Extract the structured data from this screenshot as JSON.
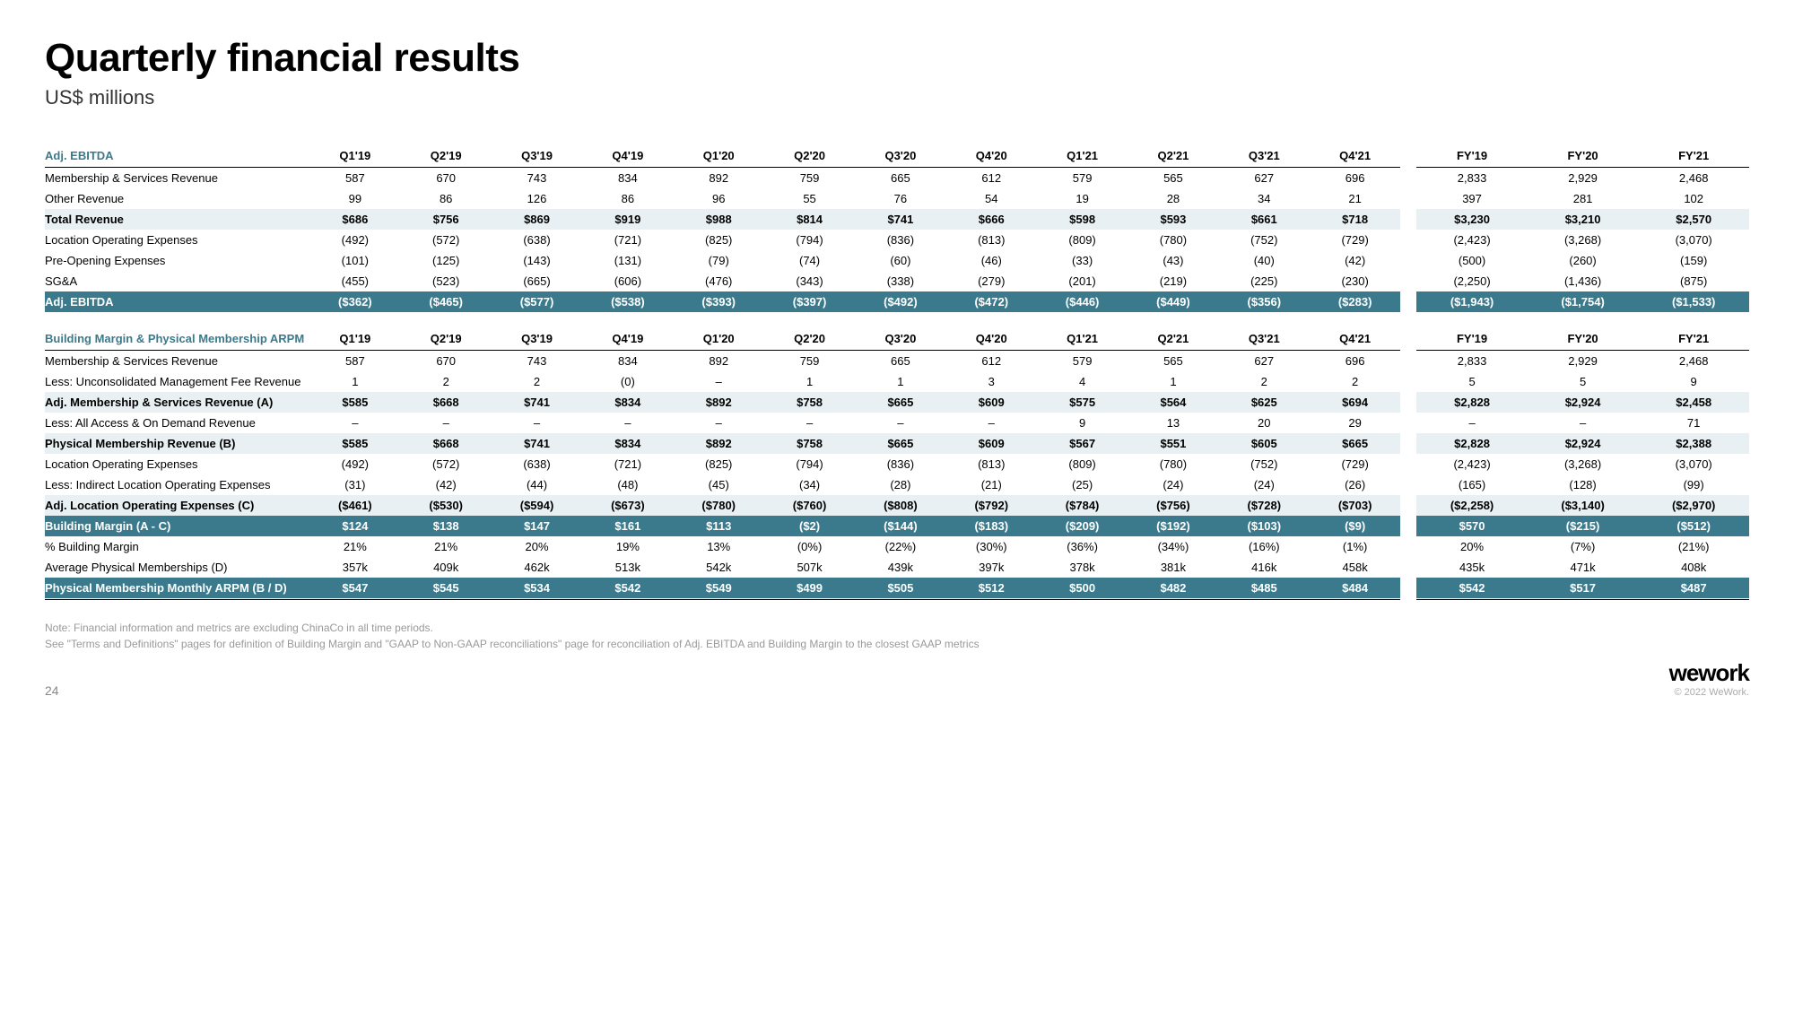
{
  "page": {
    "title": "Quarterly financial results",
    "subtitle": "US$ millions",
    "page_number": "24",
    "logo": "wework",
    "copyright": "© 2022 WeWork.",
    "note1": "Note: Financial information and metrics are excluding ChinaCo in all time periods.",
    "note2": "See \"Terms and Definitions\" pages for definition of Building Margin and \"GAAP to Non-GAAP reconciliations\" page for reconciliation of Adj. EBITDA and Building Margin to the closest GAAP metrics"
  },
  "columns_q": [
    "Q1'19",
    "Q2'19",
    "Q3'19",
    "Q4'19",
    "Q1'20",
    "Q2'20",
    "Q3'20",
    "Q4'20",
    "Q1'21",
    "Q2'21",
    "Q3'21",
    "Q4'21"
  ],
  "columns_fy": [
    "FY'19",
    "FY'20",
    "FY'21"
  ],
  "section1": {
    "header": "Adj. EBITDA",
    "rows": [
      {
        "label": "Membership & Services Revenue",
        "style": "plain",
        "q": [
          "587",
          "670",
          "743",
          "834",
          "892",
          "759",
          "665",
          "612",
          "579",
          "565",
          "627",
          "696"
        ],
        "fy": [
          "2,833",
          "2,929",
          "2,468"
        ]
      },
      {
        "label": "Other Revenue",
        "style": "plain",
        "q": [
          "99",
          "86",
          "126",
          "86",
          "96",
          "55",
          "76",
          "54",
          "19",
          "28",
          "34",
          "21"
        ],
        "fy": [
          "397",
          "281",
          "102"
        ]
      },
      {
        "label": "Total Revenue",
        "style": "light",
        "q": [
          "$686",
          "$756",
          "$869",
          "$919",
          "$988",
          "$814",
          "$741",
          "$666",
          "$598",
          "$593",
          "$661",
          "$718"
        ],
        "fy": [
          "$3,230",
          "$3,210",
          "$2,570"
        ]
      },
      {
        "label": "Location Operating Expenses",
        "style": "plain",
        "q": [
          "(492)",
          "(572)",
          "(638)",
          "(721)",
          "(825)",
          "(794)",
          "(836)",
          "(813)",
          "(809)",
          "(780)",
          "(752)",
          "(729)"
        ],
        "fy": [
          "(2,423)",
          "(3,268)",
          "(3,070)"
        ]
      },
      {
        "label": "Pre-Opening Expenses",
        "style": "plain",
        "q": [
          "(101)",
          "(125)",
          "(143)",
          "(131)",
          "(79)",
          "(74)",
          "(60)",
          "(46)",
          "(33)",
          "(43)",
          "(40)",
          "(42)"
        ],
        "fy": [
          "(500)",
          "(260)",
          "(159)"
        ]
      },
      {
        "label": "SG&A",
        "style": "plain",
        "q": [
          "(455)",
          "(523)",
          "(665)",
          "(606)",
          "(476)",
          "(343)",
          "(338)",
          "(279)",
          "(201)",
          "(219)",
          "(225)",
          "(230)"
        ],
        "fy": [
          "(2,250)",
          "(1,436)",
          "(875)"
        ]
      },
      {
        "label": "Adj. EBITDA",
        "style": "dark",
        "q": [
          "($362)",
          "($465)",
          "($577)",
          "($538)",
          "($393)",
          "($397)",
          "($492)",
          "($472)",
          "($446)",
          "($449)",
          "($356)",
          "($283)"
        ],
        "fy": [
          "($1,943)",
          "($1,754)",
          "($1,533)"
        ]
      }
    ]
  },
  "section2": {
    "header": "Building Margin & Physical Membership ARPM",
    "rows": [
      {
        "label": "Membership & Services Revenue",
        "style": "plain",
        "q": [
          "587",
          "670",
          "743",
          "834",
          "892",
          "759",
          "665",
          "612",
          "579",
          "565",
          "627",
          "696"
        ],
        "fy": [
          "2,833",
          "2,929",
          "2,468"
        ]
      },
      {
        "label": "Less: Unconsolidated Management Fee Revenue",
        "style": "plain",
        "q": [
          "1",
          "2",
          "2",
          "(0)",
          "–",
          "1",
          "1",
          "3",
          "4",
          "1",
          "2",
          "2"
        ],
        "fy": [
          "5",
          "5",
          "9"
        ]
      },
      {
        "label": "Adj. Membership & Services Revenue (A)",
        "style": "light",
        "q": [
          "$585",
          "$668",
          "$741",
          "$834",
          "$892",
          "$758",
          "$665",
          "$609",
          "$575",
          "$564",
          "$625",
          "$694"
        ],
        "fy": [
          "$2,828",
          "$2,924",
          "$2,458"
        ]
      },
      {
        "label": "Less: All Access & On Demand Revenue",
        "style": "plain",
        "q": [
          "–",
          "–",
          "–",
          "–",
          "–",
          "–",
          "–",
          "–",
          "9",
          "13",
          "20",
          "29"
        ],
        "fy": [
          "–",
          "–",
          "71"
        ]
      },
      {
        "label": "Physical Membership Revenue (B)",
        "style": "light",
        "q": [
          "$585",
          "$668",
          "$741",
          "$834",
          "$892",
          "$758",
          "$665",
          "$609",
          "$567",
          "$551",
          "$605",
          "$665"
        ],
        "fy": [
          "$2,828",
          "$2,924",
          "$2,388"
        ]
      },
      {
        "label": "Location Operating Expenses",
        "style": "plain",
        "q": [
          "(492)",
          "(572)",
          "(638)",
          "(721)",
          "(825)",
          "(794)",
          "(836)",
          "(813)",
          "(809)",
          "(780)",
          "(752)",
          "(729)"
        ],
        "fy": [
          "(2,423)",
          "(3,268)",
          "(3,070)"
        ]
      },
      {
        "label": "Less: Indirect Location Operating Expenses",
        "style": "plain",
        "q": [
          "(31)",
          "(42)",
          "(44)",
          "(48)",
          "(45)",
          "(34)",
          "(28)",
          "(21)",
          "(25)",
          "(24)",
          "(24)",
          "(26)"
        ],
        "fy": [
          "(165)",
          "(128)",
          "(99)"
        ]
      },
      {
        "label": "Adj. Location Operating Expenses (C)",
        "style": "light",
        "q": [
          "($461)",
          "($530)",
          "($594)",
          "($673)",
          "($780)",
          "($760)",
          "($808)",
          "($792)",
          "($784)",
          "($756)",
          "($728)",
          "($703)"
        ],
        "fy": [
          "($2,258)",
          "($3,140)",
          "($2,970)"
        ]
      },
      {
        "label": "Building Margin (A - C)",
        "style": "dark",
        "q": [
          "$124",
          "$138",
          "$147",
          "$161",
          "$113",
          "($2)",
          "($144)",
          "($183)",
          "($209)",
          "($192)",
          "($103)",
          "($9)"
        ],
        "fy": [
          "$570",
          "($215)",
          "($512)"
        ]
      },
      {
        "label": "% Building Margin",
        "style": "plain",
        "q": [
          "21%",
          "21%",
          "20%",
          "19%",
          "13%",
          "(0%)",
          "(22%)",
          "(30%)",
          "(36%)",
          "(34%)",
          "(16%)",
          "(1%)"
        ],
        "fy": [
          "20%",
          "(7%)",
          "(21%)"
        ]
      },
      {
        "label": "Average Physical Memberships (D)",
        "style": "plain",
        "q": [
          "357k",
          "409k",
          "462k",
          "513k",
          "542k",
          "507k",
          "439k",
          "397k",
          "378k",
          "381k",
          "416k",
          "458k"
        ],
        "fy": [
          "435k",
          "471k",
          "408k"
        ]
      },
      {
        "label": "Physical Membership Monthly ARPM (B / D)",
        "style": "dark",
        "q": [
          "$547",
          "$545",
          "$534",
          "$542",
          "$549",
          "$499",
          "$505",
          "$512",
          "$500",
          "$482",
          "$485",
          "$484"
        ],
        "fy": [
          "$542",
          "$517",
          "$487"
        ]
      }
    ]
  },
  "style": {
    "light_bg": "#e8f0f3",
    "dark_bg": "#3a7a8c",
    "accent_text": "#3a7a8c"
  }
}
